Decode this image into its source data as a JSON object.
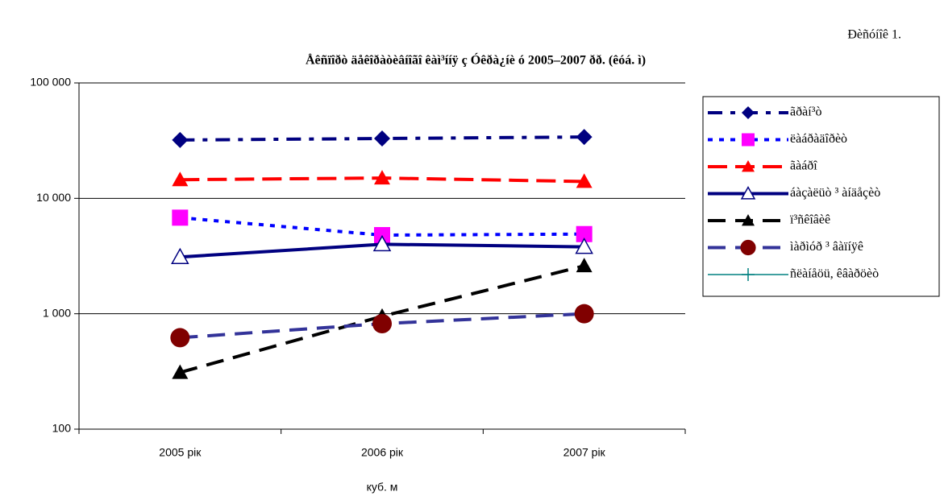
{
  "chart_data": {
    "type": "line",
    "figure_label": "Ðèñóíîê 1.",
    "title": "Åêñïîðò äåêîðàòèâíîãî êàì³ííÿ ç Óêðà¿íè ó 2005–2007 ðð. (êóá. ì)",
    "x_label": "куб. м",
    "categories": [
      "2005 рік",
      "2006 рік",
      "2007 рік"
    ],
    "log_scale": true,
    "grid": true,
    "legend": "right",
    "ylim": [
      100,
      100000
    ],
    "yticks": [
      100,
      {
        "value": 1000,
        "label": "1 000"
      },
      {
        "value": 10000,
        "label": "10 000"
      },
      {
        "value": 100000,
        "label": "100 000"
      }
    ],
    "series": [
      {
        "name": "ãðàí³ò",
        "color": "#000080",
        "marker_color": "#000080",
        "marker": "diamond",
        "dash": "18 10 6 10",
        "values": [
          32000,
          33000,
          34000
        ]
      },
      {
        "name": "ëàáðàäîðèò",
        "color": "#0000ff",
        "marker_color": "#ff00ff",
        "marker": "square",
        "dash": "6 8",
        "values": [
          6800,
          4800,
          4900
        ]
      },
      {
        "name": "ãàáðî",
        "color": "#ff0000",
        "marker_color": "#ff0000",
        "marker": "triangle",
        "dash": "24 10",
        "values": [
          14500,
          15000,
          14000
        ]
      },
      {
        "name": "áàçàëüò ³ àíäåçèò",
        "color": "#000080",
        "marker_color": "#000080",
        "marker": "open-triangle",
        "dash": "none",
        "values": [
          3100,
          4000,
          3800
        ]
      },
      {
        "name": "ï³ñêîâèê",
        "color": "#000000",
        "marker_color": "#000000",
        "marker": "triangle",
        "dash": "22 12",
        "values": [
          310,
          950,
          2600
        ]
      },
      {
        "name": "ìàðìóð ³ âàïíÿê",
        "color": "#333399",
        "marker_color": "#800000",
        "marker": "circle",
        "dash": "22 12",
        "values": [
          620,
          820,
          1000
        ]
      },
      {
        "name": "ñëàíåöü, êâàðöèò",
        "color": "#008080",
        "marker_color": "#008080",
        "marker": "plus",
        "dash": "none",
        "values": [
          null,
          null,
          null
        ]
      }
    ]
  }
}
